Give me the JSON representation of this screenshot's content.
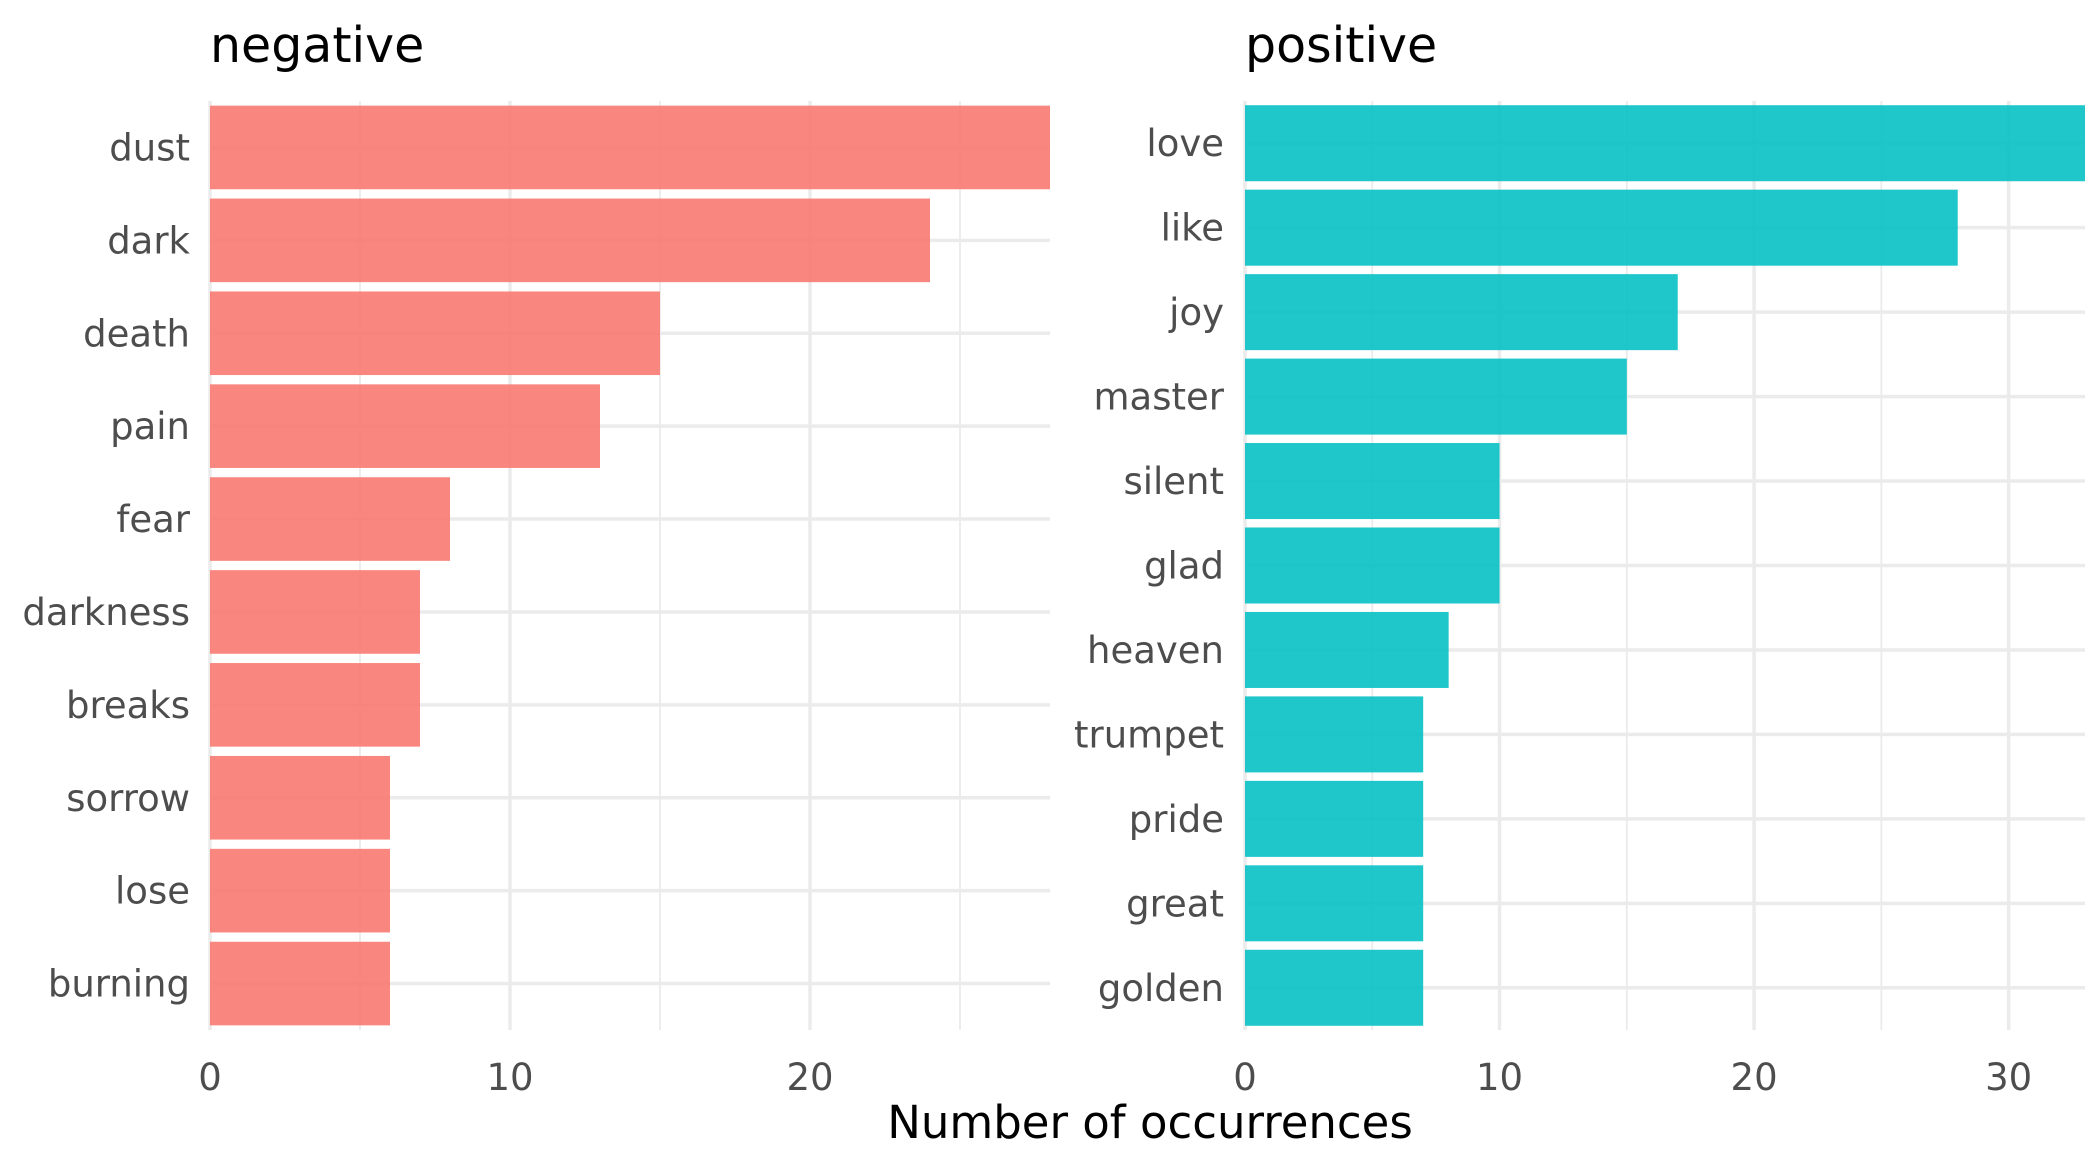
{
  "chart_data": [
    {
      "type": "bar",
      "orientation": "horizontal",
      "title": "negative",
      "categories": [
        "dust",
        "dark",
        "death",
        "pain",
        "fear",
        "darkness",
        "breaks",
        "sorrow",
        "lose",
        "burning"
      ],
      "values": [
        28,
        24,
        15,
        13,
        8,
        7,
        7,
        6,
        6,
        6
      ],
      "xlim": [
        0,
        28
      ],
      "xticks": [
        0,
        10,
        20
      ],
      "color": "#F8766D",
      "grid": true
    },
    {
      "type": "bar",
      "orientation": "horizontal",
      "title": "positive",
      "categories": [
        "love",
        "like",
        "joy",
        "master",
        "silent",
        "glad",
        "heaven",
        "trumpet",
        "pride",
        "great",
        "golden"
      ],
      "values": [
        33,
        28,
        17,
        15,
        10,
        10,
        8,
        7,
        7,
        7,
        7
      ],
      "xlim": [
        0,
        33
      ],
      "xticks": [
        0,
        10,
        20,
        30
      ],
      "color": "#00BFC4",
      "grid": true
    }
  ],
  "shared_xlabel": "Number of occurrences"
}
